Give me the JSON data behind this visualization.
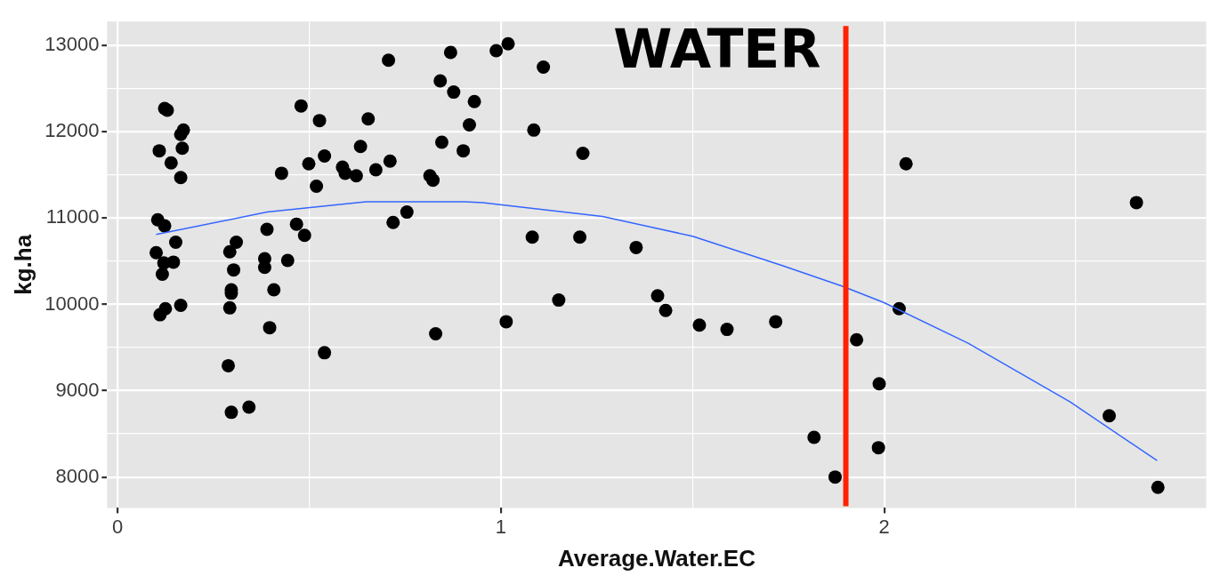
{
  "chart_data": {
    "type": "scatter",
    "xlabel": "Average.Water.EC",
    "ylabel": "kg.ha",
    "xlim": [
      -0.027,
      2.84
    ],
    "ylim": [
      7642,
      13278
    ],
    "xticks": [
      0,
      {
        "value": 0.5,
        "label": null
      },
      1,
      {
        "value": 1.5,
        "label": null
      },
      2,
      {
        "value": 2.5,
        "label": null
      }
    ],
    "yticks": [
      8000,
      {
        "value": 8500,
        "label": null
      },
      9000,
      {
        "value": 9500,
        "label": null
      },
      10000,
      {
        "value": 10500,
        "label": null
      },
      11000,
      {
        "value": 11500,
        "label": null
      },
      12000,
      {
        "value": 12500,
        "label": null
      },
      13000
    ],
    "grid": true,
    "ref_lines": [
      {
        "axis": "x",
        "value": 1.9,
        "label": "WATER",
        "color": "#ff2200"
      }
    ],
    "series": [
      {
        "type": "scatter",
        "color": "#000000",
        "marker": "circle",
        "x": [
          0.123,
          0.13,
          0.172,
          0.165,
          0.109,
          0.169,
          0.14,
          0.165,
          0.479,
          0.527,
          0.654,
          0.634,
          0.428,
          0.499,
          0.54,
          0.519,
          0.587,
          0.594,
          0.623,
          0.674,
          0.711,
          0.707,
          0.869,
          0.842,
          0.877,
          0.931,
          0.918,
          0.846,
          0.902,
          0.815,
          0.823,
          0.988,
          0.719,
          0.755,
          0.105,
          0.123,
          0.152,
          0.101,
          0.121,
          0.146,
          0.117,
          0.31,
          0.293,
          0.303,
          0.297,
          0.297,
          0.39,
          0.384,
          0.384,
          0.467,
          0.488,
          0.444,
          0.408,
          0.165,
          0.125,
          0.111,
          0.293,
          0.397,
          0.83,
          0.54,
          0.289,
          0.343,
          0.297,
          1.019,
          1.111,
          1.086,
          1.214,
          1.082,
          1.206,
          1.353,
          1.014,
          1.151,
          1.409,
          1.43,
          1.518,
          1.59,
          1.717,
          1.817,
          1.872,
          1.928,
          1.987,
          1.985,
          2.057,
          2.658,
          2.039,
          2.587,
          2.714
        ],
        "values": [
          12270,
          12250,
          12020,
          11970,
          11780,
          11810,
          11640,
          11470,
          12300,
          12130,
          12150,
          11830,
          11520,
          11630,
          11720,
          11370,
          11590,
          11520,
          11490,
          11560,
          11660,
          12830,
          12920,
          12590,
          12460,
          12350,
          12080,
          11880,
          11780,
          11490,
          11440,
          12940,
          10950,
          11070,
          10980,
          10910,
          10720,
          10600,
          10480,
          10490,
          10350,
          10720,
          10610,
          10400,
          10170,
          10130,
          10870,
          10530,
          10430,
          10930,
          10800,
          10510,
          10170,
          9990,
          9950,
          9880,
          9960,
          9730,
          9660,
          9440,
          9290,
          8810,
          8750,
          13020,
          12750,
          12020,
          11750,
          10780,
          10780,
          10660,
          9800,
          10050,
          10100,
          9930,
          9760,
          9710,
          9800,
          8460,
          8000,
          9590,
          9080,
          8340,
          11630,
          11180,
          9950,
          8710,
          7880
        ]
      },
      {
        "type": "line",
        "color": "#3366ff",
        "marker": "none",
        "x": [
          0.101,
          0.39,
          0.648,
          0.906,
          0.953,
          1.265,
          1.5,
          1.734,
          1.891,
          2.0,
          2.219,
          2.485,
          2.712
        ],
        "values": [
          10810,
          11070,
          11190,
          11190,
          11180,
          11020,
          10790,
          10450,
          10210,
          10020,
          9550,
          8870,
          8190
        ]
      }
    ]
  }
}
